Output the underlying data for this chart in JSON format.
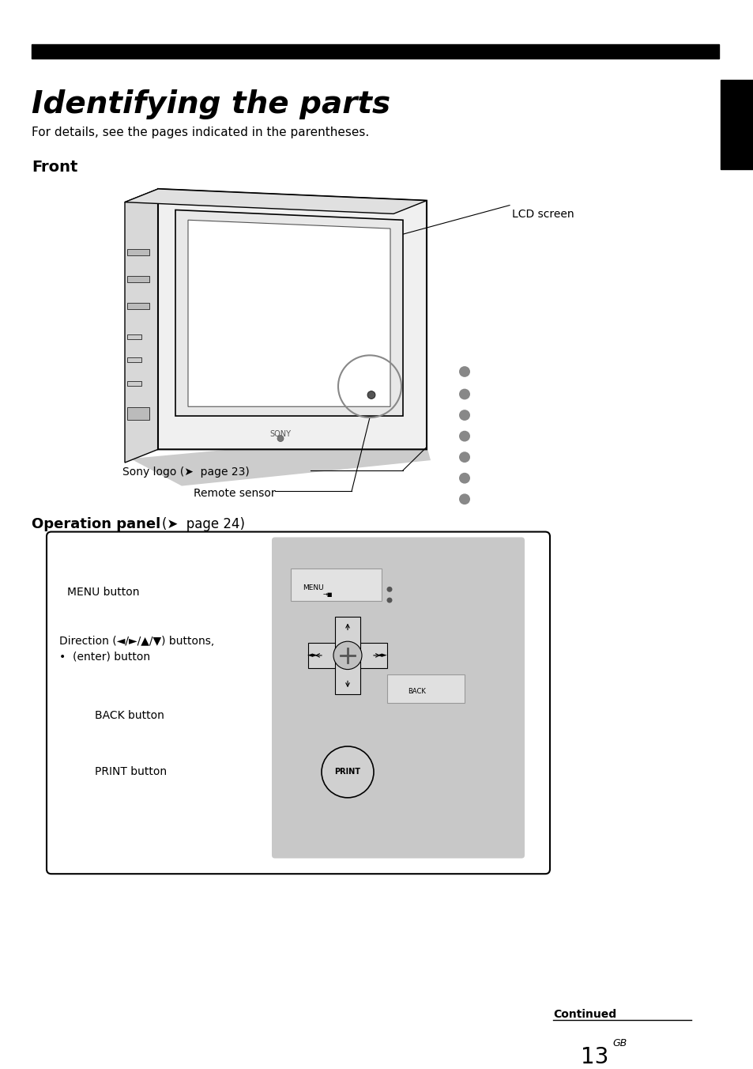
{
  "title": "Identifying the parts",
  "subtitle": "For details, see the pages indicated in the parentheses.",
  "section_front": "Front",
  "label_lcd": "LCD screen",
  "label_sony_logo": "Sony logo (➤  page 23)",
  "label_remote_sensor": "Remote sensor",
  "label_op_panel": "Operation panel",
  "label_op_panel_page": "(➤  page 24)",
  "label_menu": "MENU button",
  "label_direction": "Direction (◄/►/▲/▼) buttons,\n•  (enter) button",
  "label_back": "BACK button",
  "label_print": "PRINT button",
  "footer_continued": "Continued",
  "footer_page": "13",
  "footer_gb": "GB",
  "bg_color": "#ffffff",
  "text_color": "#000000",
  "gray_color": "#888888",
  "light_gray": "#cccccc",
  "panel_bg": "#c8c8c8"
}
